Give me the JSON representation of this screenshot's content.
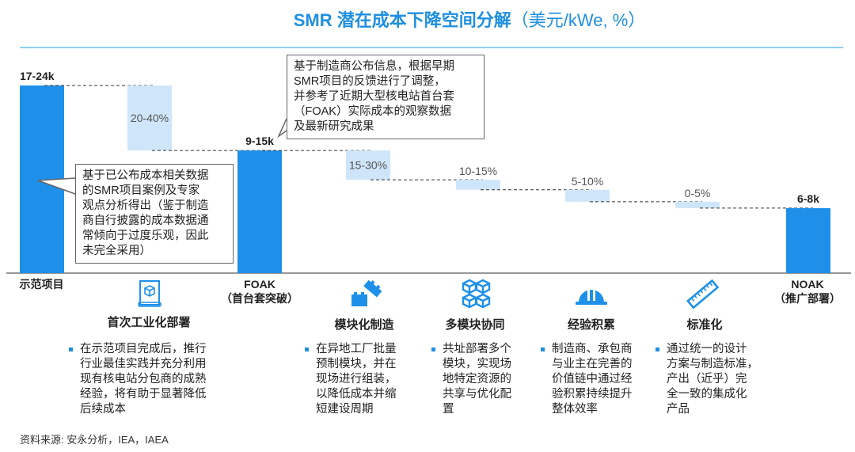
{
  "title": {
    "main": "SMR 潜在成本下降空间分解",
    "unit": "（美元/kWe, %）"
  },
  "chart_data": {
    "type": "bar",
    "subtype": "waterfall",
    "title": "SMR 潜在成本下降空间分解（美元/kWe, %）",
    "unit": "k USD/kWe",
    "categories": [
      "示范项目",
      "首次工业化部署",
      "FOAK",
      "模块化制造",
      "多模块协同",
      "经验积累",
      "标准化",
      "NOAK"
    ],
    "bars": [
      {
        "kind": "total",
        "label": "17-24k",
        "level": 20.5
      },
      {
        "kind": "decrease",
        "label": "20-40%",
        "delta": 7.1
      },
      {
        "kind": "total",
        "label": "9-15k",
        "level": 13.4
      },
      {
        "kind": "decrease",
        "label": "15-30%",
        "delta": 3.2
      },
      {
        "kind": "decrease",
        "label": "10-15%",
        "delta": 1.1
      },
      {
        "kind": "decrease",
        "label": "5-10%",
        "delta": 1.3
      },
      {
        "kind": "decrease",
        "label": "0-5%",
        "delta": 0.7
      },
      {
        "kind": "total",
        "label": "6-8k",
        "level": 7.1
      }
    ],
    "colors": {
      "total": "#1e90ea",
      "decrease": "#cfe6fa"
    }
  },
  "xlabels": {
    "demo": "示范项目",
    "foak": "FOAK",
    "foak_sub": "（首台套突破）",
    "noak": "NOAK",
    "noak_sub": "（推广部署）"
  },
  "callouts": {
    "demo": "基于已公布成本相关数据\n的SMR项目案例及专家\n观点分析得出（鉴于制造\n商自行披露的成本数据通\n常倾向于过度乐观，因此\n未完全采用）",
    "foak": "基于制造商公布信息，根据早期\nSMR项目的反馈进行了调整，\n并参考了近期大型核电站首台套\n（FOAK）实际成本的观察数据\n及最新研究成果"
  },
  "steps": [
    {
      "icon": "blueprint-icon",
      "title": "首次工业化部署",
      "text": "在示范项目完成后，推行\n行业最佳实践并充分利用\n现有核电站分包商的成熟\n经验，将有助于显著降低\n后续成本"
    },
    {
      "icon": "modules-icon",
      "title": "模块化制造",
      "text": "在异地工厂批量\n预制模块，并在\n现场进行组装，\n以降低成本并缩\n短建设周期"
    },
    {
      "icon": "cubes-icon",
      "title": "多模块协同",
      "text": "共址部署多个\n模块，实现场\n地特定资源的\n共享与优化配\n置"
    },
    {
      "icon": "hardhat-icon",
      "title": "经验积累",
      "text": "制造商、承包商\n与业主在完善的\n价值链中通过经\n验积累持续提升\n整体效率"
    },
    {
      "icon": "ruler-icon",
      "title": "标准化",
      "text": "通过统一的设计\n方案与制造标准，\n产出（近乎）完\n全一致的集成化\n产品"
    }
  ],
  "source": "资料来源: 安永分析，IEA，IAEA"
}
